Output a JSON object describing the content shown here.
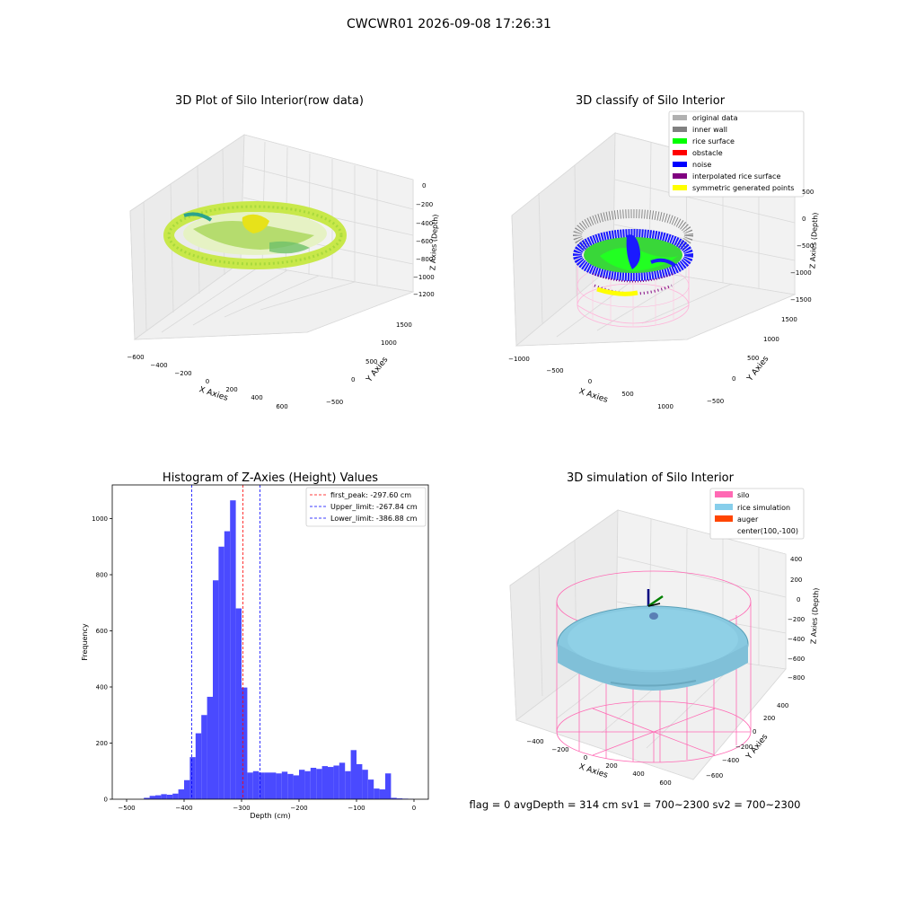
{
  "suptitle": "CWCWR01 2026-09-08 17:26:31",
  "footer": "flag = 0     avgDepth = 314 cm  sv1 = 700~2300  sv2 = 700~2300",
  "panels": {
    "raw": {
      "title": "3D Plot of Silo Interior(row data)",
      "xlabel": "X Axies",
      "ylabel": "Y Axies",
      "zlabel": "Z Axies (Depth)",
      "xticks": [
        "−600",
        "−400",
        "−200",
        "0",
        "200",
        "400",
        "600"
      ],
      "yticks": [
        "−500",
        "0",
        "500",
        "1000",
        "1500"
      ],
      "zticks": [
        "0",
        "−200",
        "−400",
        "−600",
        "−800",
        "−1000",
        "−1200"
      ]
    },
    "classify": {
      "title": "3D classify of Silo Interior",
      "xlabel": "X Axies",
      "ylabel": "Y Axies",
      "zlabel": "Z Axies (Depth)",
      "xticks": [
        "−1000",
        "−500",
        "0",
        "500",
        "1000"
      ],
      "yticks": [
        "−500",
        "0",
        "500",
        "1000",
        "1500"
      ],
      "zticks": [
        "500",
        "0",
        "−500",
        "−1000",
        "−1500"
      ],
      "legend": [
        {
          "label": "original data",
          "color": "#b0b0b0"
        },
        {
          "label": "inner wall",
          "color": "#808080"
        },
        {
          "label": "rice surface",
          "color": "#00ff00"
        },
        {
          "label": "obstacle",
          "color": "#ff0000"
        },
        {
          "label": "noise",
          "color": "#0000ff"
        },
        {
          "label": "interpolated rice surface",
          "color": "#800080"
        },
        {
          "label": "symmetric generated points",
          "color": "#ffff00"
        }
      ]
    },
    "simulation": {
      "title": "3D simulation of Silo Interior",
      "xlabel": "X Axies",
      "ylabel": "Y Axies",
      "zlabel": "Z Axies (Depth)",
      "xticks": [
        "−400",
        "−200",
        "0",
        "200",
        "400",
        "600"
      ],
      "yticks": [
        "−600",
        "−400",
        "−200",
        "0",
        "200",
        "400"
      ],
      "zticks": [
        "400",
        "200",
        "0",
        "−200",
        "−400",
        "−600",
        "−800"
      ],
      "legend": [
        {
          "label": "silo",
          "color": "#ff69b4"
        },
        {
          "label": "rice simulation",
          "color": "#87ceeb"
        },
        {
          "label": "auger",
          "color": "#ff4500"
        },
        {
          "label": "center(100,-100)",
          "color": ""
        }
      ]
    }
  },
  "chart_data": {
    "type": "bar",
    "title": "Histogram of Z-Axies (Height) Values",
    "xlabel": "Depth (cm)",
    "ylabel": "Frequency",
    "xlim": [
      -525,
      25
    ],
    "ylim": [
      0,
      1120
    ],
    "xticks": [
      -500,
      -400,
      -300,
      -200,
      -100,
      0
    ],
    "yticks": [
      0,
      200,
      400,
      600,
      800,
      1000
    ],
    "bin_width": 10,
    "bin_starts": [
      -470,
      -460,
      -450,
      -440,
      -430,
      -420,
      -410,
      -400,
      -390,
      -380,
      -370,
      -360,
      -350,
      -340,
      -330,
      -320,
      -310,
      -300,
      -290,
      -280,
      -270,
      -260,
      -250,
      -240,
      -230,
      -220,
      -210,
      -200,
      -190,
      -180,
      -170,
      -160,
      -150,
      -140,
      -130,
      -120,
      -110,
      -100,
      -90,
      -80,
      -70,
      -60,
      -50,
      -40,
      -30,
      -20,
      -10
    ],
    "counts": [
      5,
      12,
      14,
      18,
      16,
      20,
      35,
      68,
      150,
      235,
      300,
      365,
      780,
      900,
      955,
      1065,
      680,
      398,
      95,
      100,
      95,
      95,
      95,
      92,
      98,
      90,
      85,
      105,
      100,
      112,
      108,
      118,
      115,
      120,
      130,
      100,
      175,
      125,
      105,
      70,
      38,
      35,
      92,
      5,
      3,
      2,
      1
    ],
    "bar_color": "#4a4aff",
    "vlines": [
      {
        "label": "first_peak: -297.60 cm",
        "x": -297.6,
        "color": "#ff0000"
      },
      {
        "label": "Upper_limit: -267.84 cm",
        "x": -267.84,
        "color": "#0000ff"
      },
      {
        "label": "Lower_limit: -386.88 cm",
        "x": -386.88,
        "color": "#0000ff"
      }
    ]
  }
}
